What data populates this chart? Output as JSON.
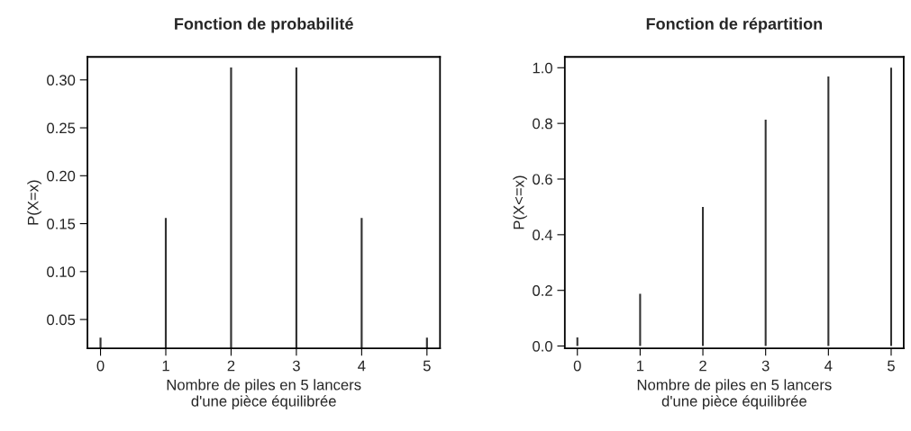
{
  "chart_data": [
    {
      "type": "bar",
      "title": "Fonction de probabilité",
      "xlabel": "Nombre de piles en 5 lancers\nd'une pièce équilibrée",
      "ylabel": "P(X=x)",
      "x": [
        0,
        1,
        2,
        3,
        4,
        5
      ],
      "values": [
        0.031,
        0.156,
        0.313,
        0.313,
        0.156,
        0.031
      ],
      "color": "#333333",
      "xlim": [
        -0.2,
        5.2
      ],
      "xticks": [
        0,
        1,
        2,
        3,
        4,
        5
      ],
      "ylim": [
        0.02,
        0.324
      ],
      "yticks": [
        {
          "value": 0.05,
          "label": "0.05"
        },
        {
          "value": 0.1,
          "label": "0.10"
        },
        {
          "value": 0.15,
          "label": "0.15"
        },
        {
          "value": 0.2,
          "label": "0.20"
        },
        {
          "value": 0.25,
          "label": "0.25"
        },
        {
          "value": 0.3,
          "label": "0.30"
        }
      ],
      "grid": false
    },
    {
      "type": "bar",
      "title": "Fonction de répartition",
      "xlabel": "Nombre de piles en 5 lancers\nd'une pièce équilibrée",
      "ylabel": "P(X<=x)",
      "x": [
        0,
        1,
        2,
        3,
        4,
        5
      ],
      "values": [
        0.031,
        0.188,
        0.5,
        0.813,
        0.969,
        1.0
      ],
      "color": "#333333",
      "xlim": [
        -0.2,
        5.2
      ],
      "xticks": [
        0,
        1,
        2,
        3,
        4,
        5
      ],
      "ylim": [
        -0.008,
        1.039
      ],
      "yticks": [
        {
          "value": 0,
          "label": "0.0"
        },
        {
          "value": 0.2,
          "label": "0.2"
        },
        {
          "value": 0.4,
          "label": "0.4"
        },
        {
          "value": 0.6,
          "label": "0.6"
        },
        {
          "value": 0.8,
          "label": "0.8"
        },
        {
          "value": 1,
          "label": "1.0"
        }
      ],
      "grid": false
    }
  ]
}
